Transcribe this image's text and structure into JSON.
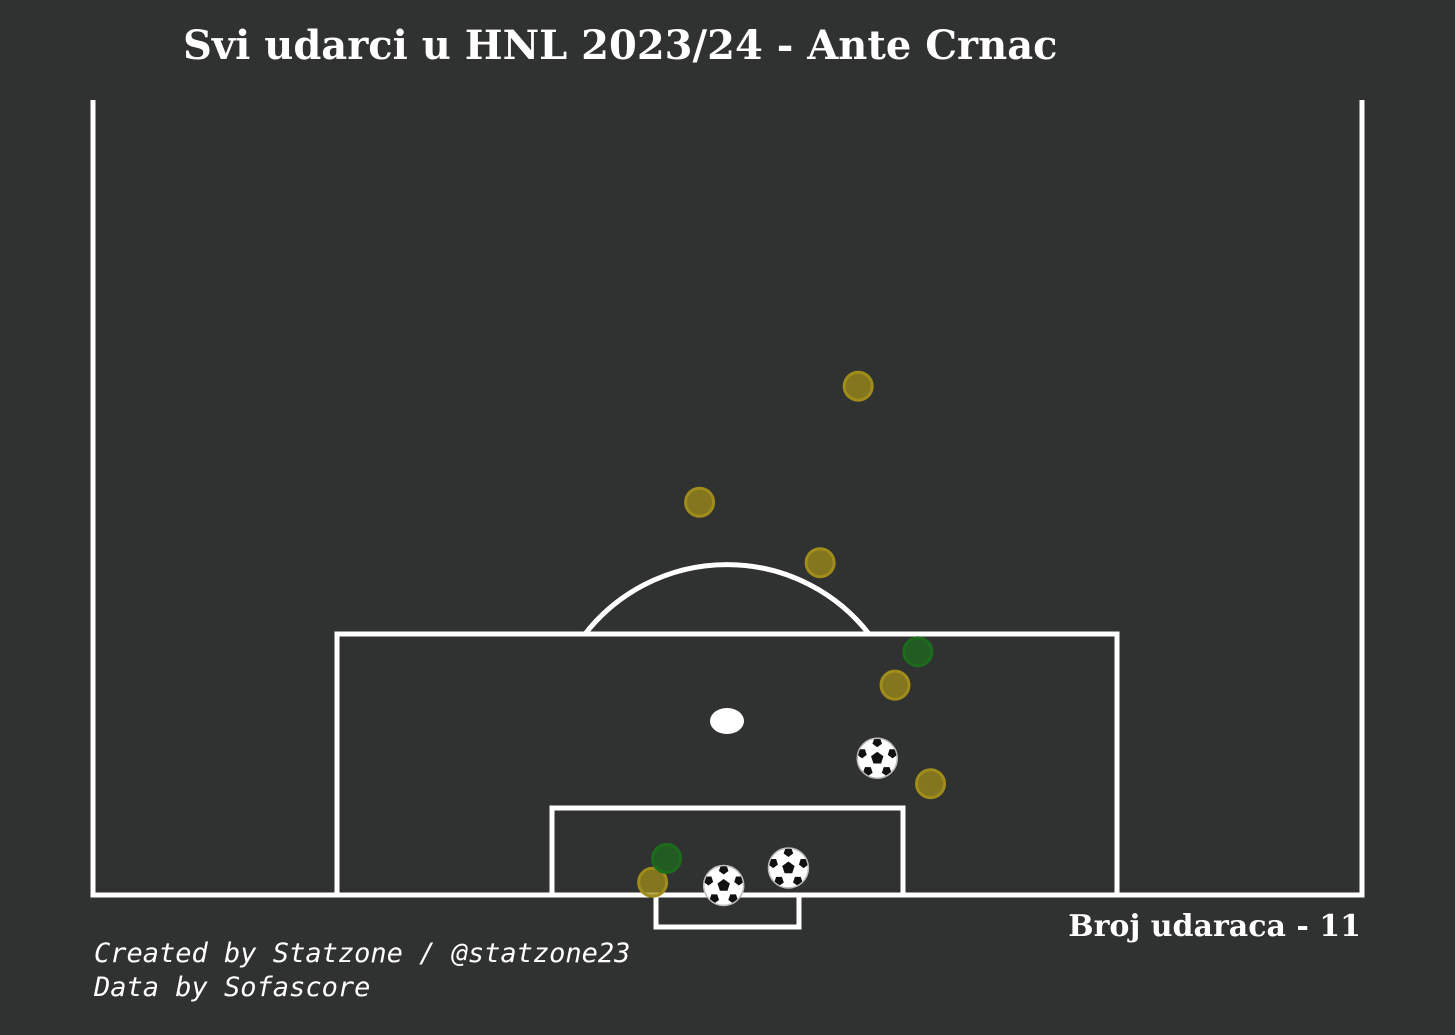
{
  "title": "Svi udarci u HNL 2023/24 - Ante Crnac",
  "shot_count_label": "Broj udaraca - 11",
  "credits": {
    "line1": "Created by Statzone / @statzone23",
    "line2": "Data by Sofascore"
  },
  "colors": {
    "background": "#303131",
    "lines": "#ffffff",
    "shot_off_target": "#a08c1a",
    "shot_on_target": "#1d6b1d",
    "goal": "#ffffff"
  },
  "legend_icons": {
    "goal": "soccer-ball-icon"
  },
  "chart_data": {
    "type": "scatter",
    "title": "Svi udarci u HNL 2023/24 - Ante Crnac",
    "xlabel": "",
    "ylabel": "",
    "xlim": [
      0,
      100
    ],
    "ylim": [
      50,
      100
    ],
    "grid": false,
    "series": [
      {
        "category": "off_target",
        "points": [
          {
            "x": 60.3,
            "y": 82.0
          },
          {
            "x": 47.8,
            "y": 74.7
          },
          {
            "x": 57.3,
            "y": 70.9
          },
          {
            "x": 63.2,
            "y": 63.2
          },
          {
            "x": 66.0,
            "y": 57.0
          },
          {
            "x": 44.1,
            "y": 50.8
          }
        ]
      },
      {
        "category": "on_target",
        "points": [
          {
            "x": 65.0,
            "y": 65.3
          },
          {
            "x": 45.2,
            "y": 52.3
          }
        ]
      },
      {
        "category": "goal",
        "points": [
          {
            "x": 61.8,
            "y": 58.6
          },
          {
            "x": 54.8,
            "y": 51.7
          },
          {
            "x": 49.7,
            "y": 50.6
          }
        ]
      }
    ]
  }
}
